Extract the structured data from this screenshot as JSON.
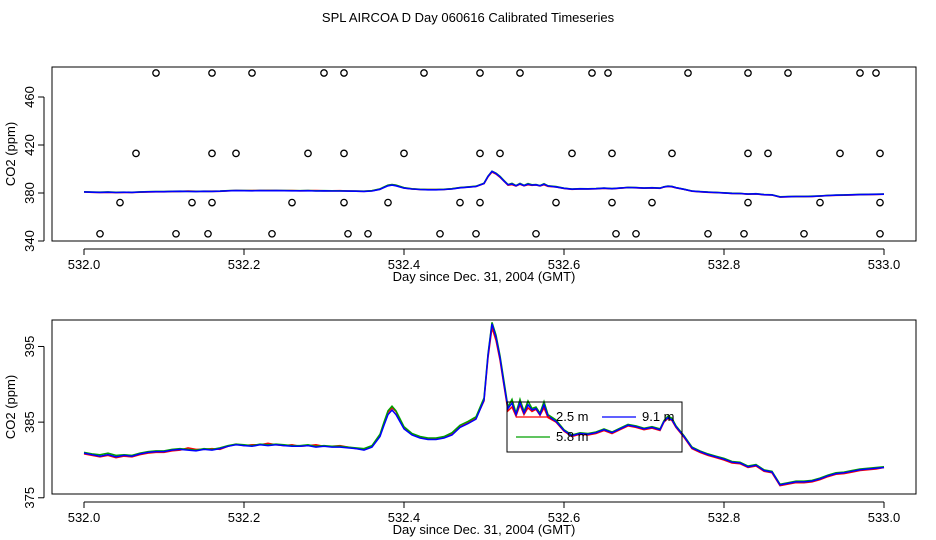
{
  "title": "SPL AIRCOA D  Day 060616  Calibrated Timeseries",
  "colors": {
    "s1": "#ff0000",
    "s2": "#00a000",
    "s3": "#0000ff",
    "axis": "#000000"
  },
  "chart_data": [
    {
      "type": "scatter+line",
      "title": "SPL AIRCOA D  Day 060616  Calibrated Timeseries",
      "xlabel": "Day since Dec. 31, 2004 (GMT)",
      "ylabel": "CO2 (ppm)",
      "xlim": [
        532.0,
        533.0
      ],
      "ylim": [
        340,
        485
      ],
      "xticks": [
        532.0,
        532.2,
        532.4,
        532.6,
        532.8,
        533.0
      ],
      "xtick_labels": [
        "532.0",
        "532.2",
        "532.4",
        "532.6",
        "532.8",
        "533.0"
      ],
      "yticks": [
        340,
        380,
        420,
        460
      ],
      "ytick_labels": [
        "340",
        "380",
        "420",
        "460"
      ],
      "calibration_points": {
        "x": [
          532.09,
          532.16,
          532.21,
          532.3,
          532.325,
          532.425,
          532.495,
          532.545,
          532.635,
          532.655,
          532.755,
          532.83,
          532.88,
          532.97,
          532.99,
          532.065,
          532.16,
          532.19,
          532.28,
          532.325,
          532.4,
          532.495,
          532.52,
          532.61,
          532.66,
          532.735,
          532.83,
          532.855,
          532.945,
          532.995,
          532.045,
          532.135,
          532.16,
          532.26,
          532.325,
          532.38,
          532.47,
          532.495,
          532.59,
          532.66,
          532.71,
          532.83,
          532.92,
          532.995,
          532.02,
          532.115,
          532.155,
          532.235,
          532.33,
          532.355,
          532.445,
          532.49,
          532.565,
          532.665,
          532.69,
          532.78,
          532.825,
          532.9,
          532.995
        ],
        "y": [
          480,
          480,
          480,
          480,
          480,
          480,
          480,
          480,
          480,
          480,
          480,
          480,
          480,
          480,
          480,
          413,
          413,
          413,
          413,
          413,
          413,
          413,
          413,
          413,
          413,
          413,
          413,
          413,
          413,
          413,
          372,
          372,
          372,
          372,
          372,
          372,
          372,
          372,
          372,
          372,
          372,
          372,
          372,
          372,
          346,
          346,
          346,
          346,
          346,
          346,
          346,
          346,
          346,
          346,
          346,
          346,
          346,
          346,
          346
        ]
      },
      "series": [
        {
          "name": "2.5 m",
          "color": "#ff0000"
        },
        {
          "name": "5.8 m",
          "color": "#00a000"
        },
        {
          "name": "9.1 m",
          "color": "#0000ff"
        }
      ]
    },
    {
      "type": "line",
      "xlabel": "Day since Dec. 31, 2004 (GMT)",
      "ylabel": "CO2 (ppm)",
      "xlim": [
        532.0,
        533.0
      ],
      "ylim": [
        375.5,
        398.5
      ],
      "xticks": [
        532.0,
        532.2,
        532.4,
        532.6,
        532.8,
        533.0
      ],
      "xtick_labels": [
        "532.0",
        "532.2",
        "532.4",
        "532.6",
        "532.8",
        "533.0"
      ],
      "yticks": [
        375,
        385,
        395
      ],
      "ytick_labels": [
        "375",
        "385",
        "395"
      ],
      "legend": {
        "placement": "center-right",
        "entries": [
          "2.5 m",
          "9.1 m",
          "5.8 m"
        ]
      },
      "x": [
        532.0,
        532.01,
        532.02,
        532.03,
        532.04,
        532.05,
        532.06,
        532.07,
        532.08,
        532.09,
        532.1,
        532.11,
        532.12,
        532.13,
        532.14,
        532.15,
        532.16,
        532.17,
        532.18,
        532.19,
        532.2,
        532.21,
        532.22,
        532.23,
        532.24,
        532.25,
        532.26,
        532.27,
        532.28,
        532.29,
        532.3,
        532.31,
        532.32,
        532.33,
        532.34,
        532.35,
        532.36,
        532.37,
        532.375,
        532.38,
        532.385,
        532.39,
        532.4,
        532.41,
        532.42,
        532.43,
        532.44,
        532.45,
        532.46,
        532.47,
        532.48,
        532.49,
        532.5,
        532.505,
        532.51,
        532.515,
        532.52,
        532.525,
        532.53,
        532.535,
        532.54,
        532.545,
        532.55,
        532.555,
        532.56,
        532.565,
        532.57,
        532.575,
        532.58,
        532.59,
        532.6,
        532.61,
        532.62,
        532.63,
        532.64,
        532.65,
        532.66,
        532.67,
        532.68,
        532.69,
        532.7,
        532.71,
        532.72,
        532.725,
        532.73,
        532.735,
        532.74,
        532.75,
        532.76,
        532.77,
        532.78,
        532.79,
        532.8,
        532.81,
        532.82,
        532.83,
        532.84,
        532.85,
        532.86,
        532.87,
        532.88,
        532.89,
        532.9,
        532.91,
        532.92,
        532.93,
        532.94,
        532.95,
        532.96,
        532.97,
        532.98,
        532.99,
        533.0
      ],
      "series": [
        {
          "name": "2.5 m",
          "color": "#ff0000",
          "values": [
            380.8,
            380.6,
            380.4,
            380.6,
            380.3,
            380.5,
            380.4,
            380.7,
            380.9,
            381.0,
            381.0,
            381.2,
            381.3,
            381.6,
            381.4,
            381.4,
            381.5,
            381.4,
            381.8,
            382.1,
            381.9,
            382.0,
            382.0,
            382.2,
            382.0,
            381.9,
            382.0,
            381.8,
            381.9,
            382.0,
            381.8,
            381.8,
            381.9,
            381.7,
            381.5,
            381.4,
            381.8,
            383.2,
            384.8,
            386.3,
            386.9,
            386.4,
            384.2,
            383.4,
            383.0,
            382.8,
            382.8,
            383.0,
            383.5,
            384.4,
            384.9,
            385.5,
            387.8,
            393.5,
            397.5,
            395.8,
            393.2,
            389.8,
            386.5,
            387.0,
            385.8,
            387.3,
            386.0,
            386.9,
            386.4,
            386.7,
            385.9,
            386.9,
            385.6,
            385.0,
            383.8,
            383.1,
            383.4,
            383.3,
            383.5,
            383.9,
            383.5,
            384.0,
            384.5,
            384.3,
            384.0,
            384.2,
            383.9,
            385.0,
            385.5,
            385.2,
            384.3,
            383.0,
            381.5,
            381.0,
            380.6,
            380.3,
            380.0,
            379.6,
            379.5,
            379.0,
            379.2,
            378.5,
            378.3,
            376.6,
            376.8,
            377.0,
            377.0,
            377.1,
            377.4,
            377.8,
            378.1,
            378.2,
            378.4,
            378.6,
            378.7,
            378.8,
            379.0
          ]
        },
        {
          "name": "5.8 m",
          "color": "#00a000",
          "values": [
            381.0,
            380.8,
            380.7,
            380.9,
            380.6,
            380.7,
            380.6,
            380.9,
            381.1,
            381.2,
            381.2,
            381.4,
            381.5,
            381.4,
            381.3,
            381.5,
            381.4,
            381.6,
            381.9,
            382.1,
            382.0,
            381.9,
            382.1,
            382.0,
            382.1,
            382.0,
            381.9,
            381.9,
            382.0,
            381.8,
            381.9,
            381.8,
            381.8,
            381.7,
            381.6,
            381.5,
            381.9,
            383.4,
            385.0,
            386.5,
            387.1,
            386.5,
            384.4,
            383.5,
            383.1,
            382.9,
            382.9,
            383.1,
            383.6,
            384.6,
            385.1,
            385.7,
            388.2,
            394.0,
            398.2,
            396.5,
            393.8,
            390.4,
            387.0,
            388.0,
            386.2,
            388.0,
            386.4,
            387.8,
            386.8,
            387.0,
            386.2,
            387.7,
            386.0,
            385.3,
            384.0,
            383.3,
            383.6,
            383.5,
            383.7,
            384.1,
            383.7,
            384.2,
            384.7,
            384.5,
            384.2,
            384.4,
            384.1,
            385.2,
            385.8,
            385.5,
            384.5,
            383.2,
            381.7,
            381.2,
            380.8,
            380.5,
            380.2,
            379.8,
            379.7,
            379.2,
            379.4,
            378.7,
            378.5,
            376.8,
            377.0,
            377.2,
            377.2,
            377.3,
            377.6,
            378.0,
            378.3,
            378.4,
            378.6,
            378.8,
            378.9,
            379.0,
            379.1
          ]
        },
        {
          "name": "9.1 m",
          "color": "#0000ff",
          "values": [
            380.9,
            380.7,
            380.5,
            380.7,
            380.4,
            380.6,
            380.5,
            380.8,
            381.0,
            381.1,
            381.1,
            381.3,
            381.4,
            381.3,
            381.2,
            381.4,
            381.3,
            381.5,
            381.8,
            382.0,
            381.9,
            381.8,
            382.0,
            381.9,
            382.0,
            381.9,
            381.8,
            381.8,
            381.9,
            381.7,
            381.8,
            381.7,
            381.7,
            381.6,
            381.5,
            381.3,
            381.7,
            383.1,
            384.6,
            386.0,
            386.6,
            386.0,
            384.1,
            383.3,
            382.9,
            382.7,
            382.7,
            382.9,
            383.3,
            384.3,
            384.8,
            385.4,
            387.9,
            393.8,
            398.0,
            396.2,
            393.5,
            390.0,
            386.8,
            387.5,
            386.0,
            387.6,
            386.2,
            387.3,
            386.6,
            386.8,
            386.0,
            387.3,
            385.8,
            385.1,
            383.9,
            383.2,
            383.5,
            383.4,
            383.6,
            384.0,
            383.6,
            384.1,
            384.6,
            384.4,
            384.1,
            384.3,
            384.0,
            385.1,
            385.6,
            385.3,
            384.4,
            383.1,
            381.6,
            381.1,
            380.7,
            380.4,
            380.1,
            379.7,
            379.6,
            379.1,
            379.3,
            378.6,
            378.4,
            376.7,
            376.9,
            377.1,
            377.1,
            377.2,
            377.5,
            377.9,
            378.2,
            378.3,
            378.5,
            378.7,
            378.8,
            378.9,
            379.0
          ]
        }
      ]
    }
  ]
}
